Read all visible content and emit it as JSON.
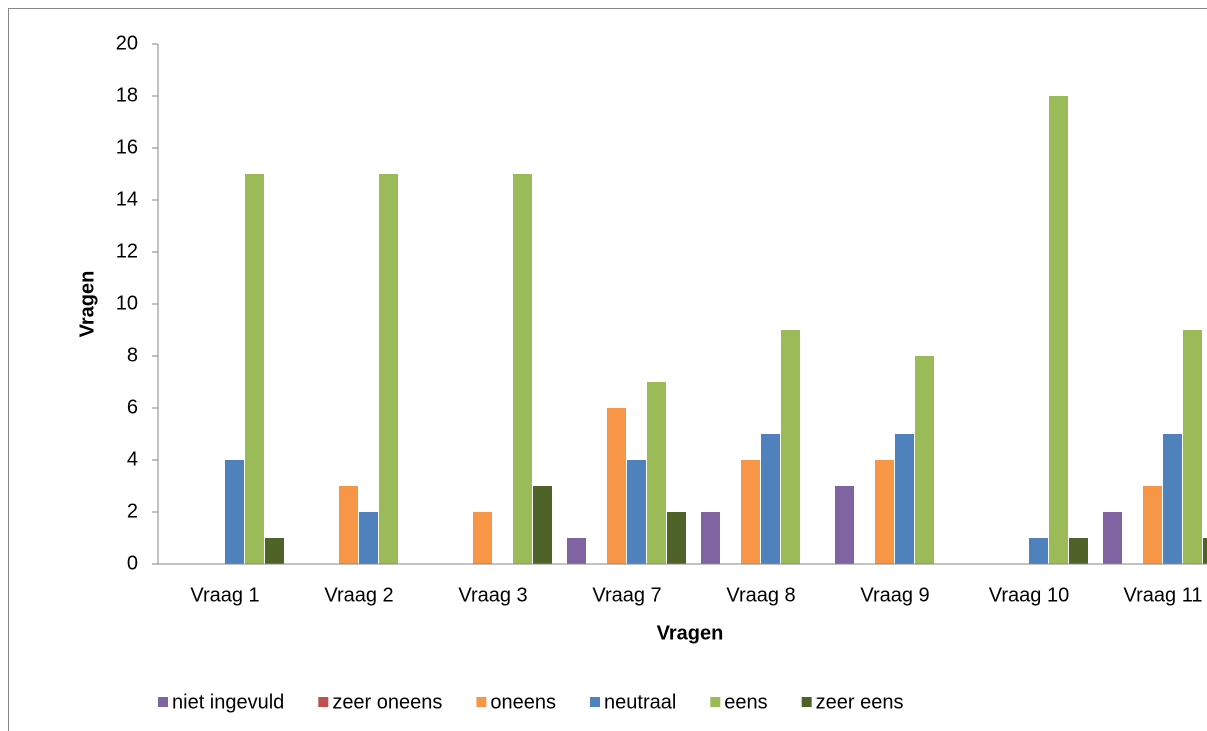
{
  "chart_data": {
    "type": "bar",
    "x_label": "Vragen",
    "y_label": "Vragen",
    "categories": [
      "Vraag 1",
      "Vraag 2",
      "Vraag 3",
      "Vraag 7",
      "Vraag 8",
      "Vraag 9",
      "Vraag 10",
      "Vraag 11"
    ],
    "series": [
      {
        "name": "niet ingevuld",
        "color": "#8064a2",
        "values": [
          0,
          0,
          0,
          1,
          2,
          3,
          0,
          2
        ]
      },
      {
        "name": "zeer oneens",
        "color": "#c0504d",
        "values": [
          0,
          0,
          0,
          0,
          0,
          0,
          0,
          0
        ]
      },
      {
        "name": "oneens",
        "color": "#f79646",
        "values": [
          0,
          3,
          2,
          6,
          4,
          4,
          0,
          3
        ]
      },
      {
        "name": "neutraal",
        "color": "#4f81bd",
        "values": [
          4,
          2,
          0,
          4,
          5,
          5,
          1,
          5
        ]
      },
      {
        "name": "eens",
        "color": "#9bbb59",
        "values": [
          15,
          15,
          15,
          7,
          9,
          8,
          18,
          9
        ]
      },
      {
        "name": "zeer eens",
        "color": "#4f6228",
        "values": [
          1,
          0,
          3,
          2,
          0,
          0,
          1,
          1
        ]
      }
    ],
    "ylim": [
      0,
      20
    ],
    "yticks": [
      0,
      2,
      4,
      6,
      8,
      10,
      12,
      14,
      16,
      18,
      20
    ],
    "grid": false,
    "legend": "bottom"
  }
}
